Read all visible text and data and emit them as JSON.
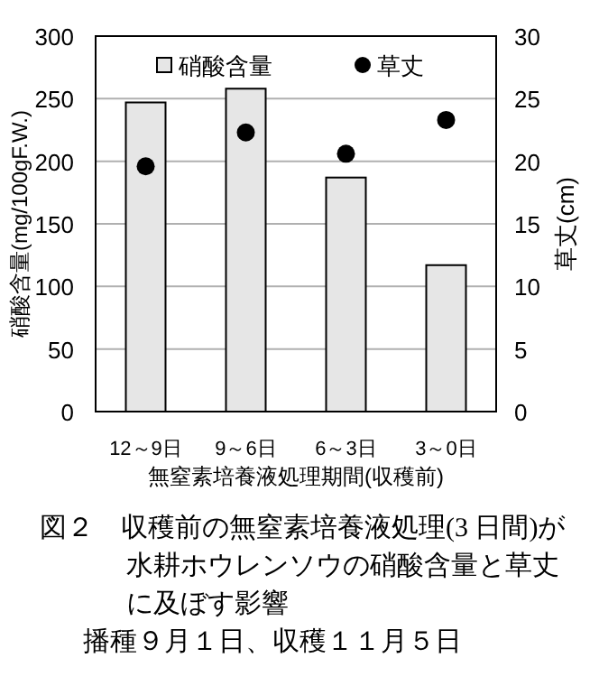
{
  "chart_data": {
    "type": "bar",
    "categories": [
      "12～9日",
      "9～6日",
      "6～3日",
      "3～0日"
    ],
    "series": [
      {
        "name": "硝酸含量",
        "color": "#e6e6e6",
        "values": [
          247,
          258,
          187,
          117
        ]
      },
      {
        "name": "草丈",
        "type": "scatter",
        "axis": "y2",
        "marker": "circle",
        "color": "#000000",
        "values": [
          19.6,
          22.3,
          20.6,
          23.3
        ]
      }
    ],
    "xlabel": "無窒素培養液処理期間(収穫前)",
    "ylabel": "硝酸含量(mg/100gF.W.)",
    "y2label": "草丈(cm)",
    "ylim": [
      0,
      300
    ],
    "yticks": [
      0,
      50,
      100,
      150,
      200,
      250,
      300
    ],
    "y2lim": [
      0,
      30
    ],
    "y2ticks": [
      0,
      5,
      10,
      15,
      20,
      25,
      30
    ],
    "grid": "y",
    "legend": "top",
    "annotations": [
      "図２　収穫前の無窒素培養液処理(3 日間)が水耕ホウレンソウの硝酸含量と草丈に及ぼす影響",
      "播種９月１日、収穫１１月５日"
    ]
  }
}
